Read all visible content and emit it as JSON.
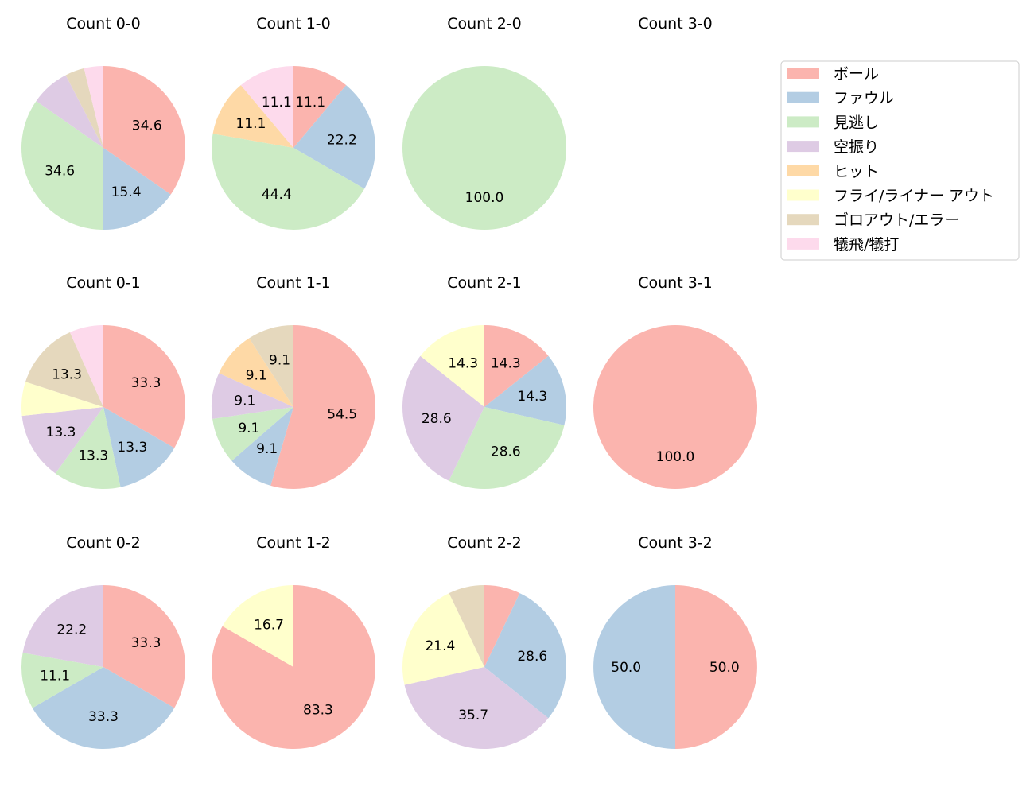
{
  "chart_data": {
    "type": "pie",
    "legend": {
      "placement": "top-right",
      "entries": [
        "ボール",
        "ファウル",
        "見逃し",
        "空振り",
        "ヒット",
        "フライ/ライナー アウト",
        "ゴロアウト/エラー",
        "犠飛/犠打"
      ],
      "colors": [
        "#fbb4ae",
        "#b3cde3",
        "#ccebc5",
        "#decbe4",
        "#fed9a6",
        "#ffffcc",
        "#e5d8bd",
        "#fddaec"
      ]
    },
    "start_angle": 90,
    "direction": "clockwise",
    "charts": [
      {
        "title": "Count 0-0",
        "values": [
          34.6,
          15.4,
          34.6,
          7.7,
          0,
          0,
          3.8,
          3.8
        ],
        "labels": [
          "34.6",
          "15.4",
          "34.6",
          "",
          "",
          "",
          "",
          ""
        ]
      },
      {
        "title": "Count 1-0",
        "values": [
          11.1,
          22.2,
          44.4,
          0,
          11.1,
          0,
          0,
          11.1
        ],
        "labels": [
          "11.1",
          "22.2",
          "44.4",
          "",
          "11.1",
          "",
          "",
          "11.1"
        ]
      },
      {
        "title": "Count 2-0",
        "values": [
          0,
          0,
          100,
          0,
          0,
          0,
          0,
          0
        ],
        "labels": [
          "",
          "",
          "100.0",
          "",
          "",
          "",
          "",
          ""
        ]
      },
      {
        "title": "Count 3-0",
        "values": [
          0,
          0,
          0,
          0,
          0,
          0,
          0,
          0
        ],
        "labels": [
          "",
          "",
          "",
          "",
          "",
          "",
          "",
          ""
        ]
      },
      {
        "title": "Count 0-1",
        "values": [
          33.3,
          13.3,
          13.3,
          13.3,
          0,
          6.7,
          13.3,
          6.7
        ],
        "labels": [
          "33.3",
          "13.3",
          "13.3",
          "13.3",
          "",
          "",
          "13.3",
          ""
        ]
      },
      {
        "title": "Count 1-1",
        "values": [
          54.5,
          9.1,
          9.1,
          9.1,
          9.1,
          0,
          9.1,
          0
        ],
        "labels": [
          "54.5",
          "9.1",
          "9.1",
          "9.1",
          "9.1",
          "",
          "9.1",
          ""
        ]
      },
      {
        "title": "Count 2-1",
        "values": [
          14.3,
          14.3,
          28.6,
          28.6,
          0,
          14.3,
          0,
          0
        ],
        "labels": [
          "14.3",
          "14.3",
          "28.6",
          "28.6",
          "",
          "14.3",
          "",
          ""
        ]
      },
      {
        "title": "Count 3-1",
        "values": [
          100,
          0,
          0,
          0,
          0,
          0,
          0,
          0
        ],
        "labels": [
          "100.0",
          "",
          "",
          "",
          "",
          "",
          "",
          ""
        ]
      },
      {
        "title": "Count 0-2",
        "values": [
          33.3,
          33.3,
          11.1,
          22.2,
          0,
          0,
          0,
          0
        ],
        "labels": [
          "33.3",
          "33.3",
          "11.1",
          "22.2",
          "",
          "",
          "",
          ""
        ]
      },
      {
        "title": "Count 1-2",
        "values": [
          83.3,
          0,
          0,
          0,
          0,
          16.7,
          0,
          0
        ],
        "labels": [
          "83.3",
          "",
          "",
          "",
          "",
          "16.7",
          "",
          ""
        ]
      },
      {
        "title": "Count 2-2",
        "values": [
          7.1,
          28.6,
          0,
          35.7,
          0,
          21.4,
          7.1,
          0
        ],
        "labels": [
          "",
          "28.6",
          "",
          "35.7",
          "",
          "21.4",
          "",
          ""
        ]
      },
      {
        "title": "Count 3-2",
        "values": [
          50,
          50,
          0,
          0,
          0,
          0,
          0,
          0
        ],
        "labels": [
          "50.0",
          "50.0",
          "",
          "",
          "",
          "",
          "",
          ""
        ]
      }
    ]
  }
}
